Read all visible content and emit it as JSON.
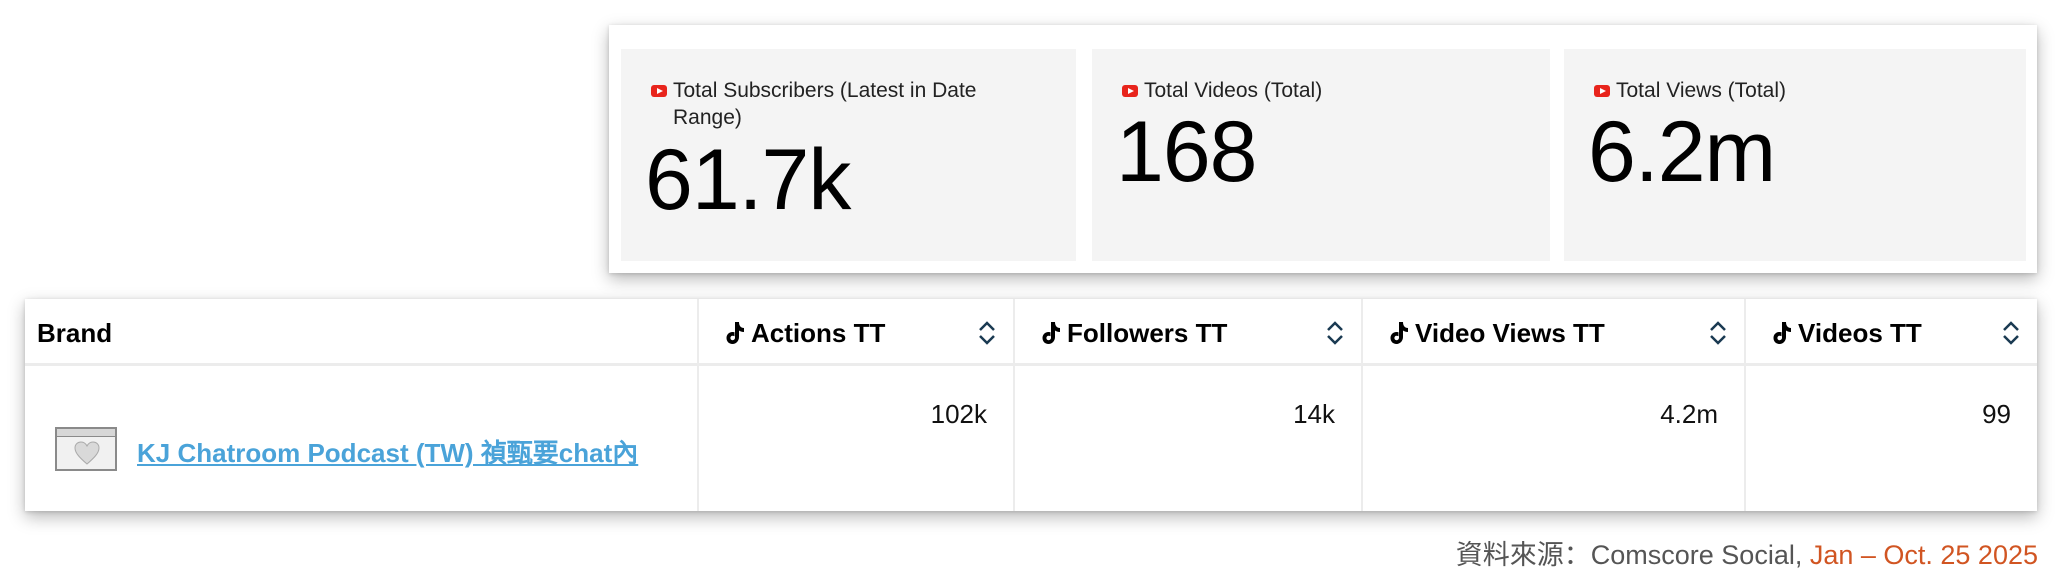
{
  "kpis": [
    {
      "icon": "youtube-icon",
      "label": "Total Subscribers (Latest in Date Range)",
      "value": "61.7k"
    },
    {
      "icon": "youtube-icon",
      "label": "Total Videos (Total)",
      "value": "168"
    },
    {
      "icon": "youtube-icon",
      "label": "Total Views (Total)",
      "value": "6.2m"
    }
  ],
  "table": {
    "brand_header": "Brand",
    "metric_headers": [
      {
        "icon": "tiktok-icon",
        "label": "Actions TT"
      },
      {
        "icon": "tiktok-icon",
        "label": "Followers TT"
      },
      {
        "icon": "tiktok-icon",
        "label": "Video Views TT"
      },
      {
        "icon": "tiktok-icon",
        "label": "Videos TT"
      }
    ],
    "rows": [
      {
        "brand": "KJ Chatroom Podcast (TW) 禎甄要chat內",
        "values": [
          "102k",
          "14k",
          "4.2m",
          "99"
        ]
      }
    ]
  },
  "source": {
    "prefix": "資料來源：Comscore Social, ",
    "date": "Jan – Oct. 25 2025"
  },
  "colors": {
    "youtube": "#e8241c",
    "link": "#4aa3d9",
    "date": "#d15522",
    "card_bg": "#f4f4f4"
  }
}
